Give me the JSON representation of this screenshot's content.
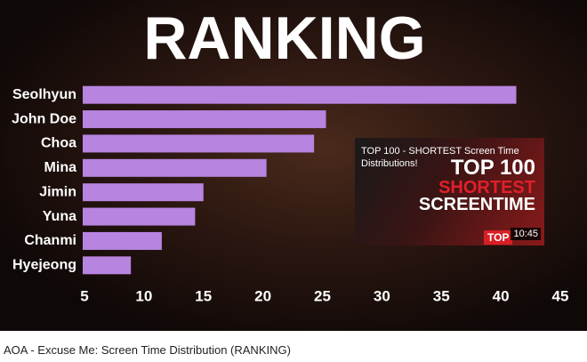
{
  "chart_data": {
    "type": "barh",
    "title": "RANKING",
    "categories": [
      "Seolhyun",
      "John Doe",
      "Choa",
      "Mina",
      "Jimin",
      "Yuna",
      "Chanmi",
      "Hyejeong"
    ],
    "values": [
      41.3,
      25.3,
      24.3,
      20.3,
      15.0,
      14.3,
      11.5,
      8.9
    ],
    "color": "#b784e0",
    "xlim": [
      5,
      45
    ],
    "xticks": [
      5,
      10,
      15,
      20,
      25,
      30,
      35,
      40,
      45
    ]
  },
  "card": {
    "title": "TOP 100 - SHORTEST Screen Time Distributions!",
    "thumbnail_text": [
      "TOP 100",
      "SHORTEST",
      "SCREENTIME"
    ],
    "badge": "TOP",
    "duration": "10:45"
  },
  "video_title": "AOA - Excuse Me: Screen Time Distribution (RANKING)"
}
